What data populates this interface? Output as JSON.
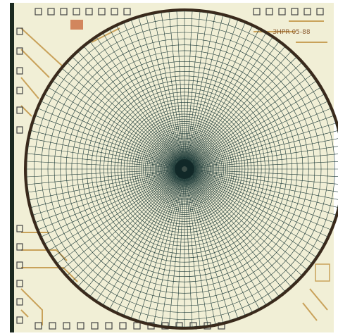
{
  "label": "ЗНРR 05-88"
}
